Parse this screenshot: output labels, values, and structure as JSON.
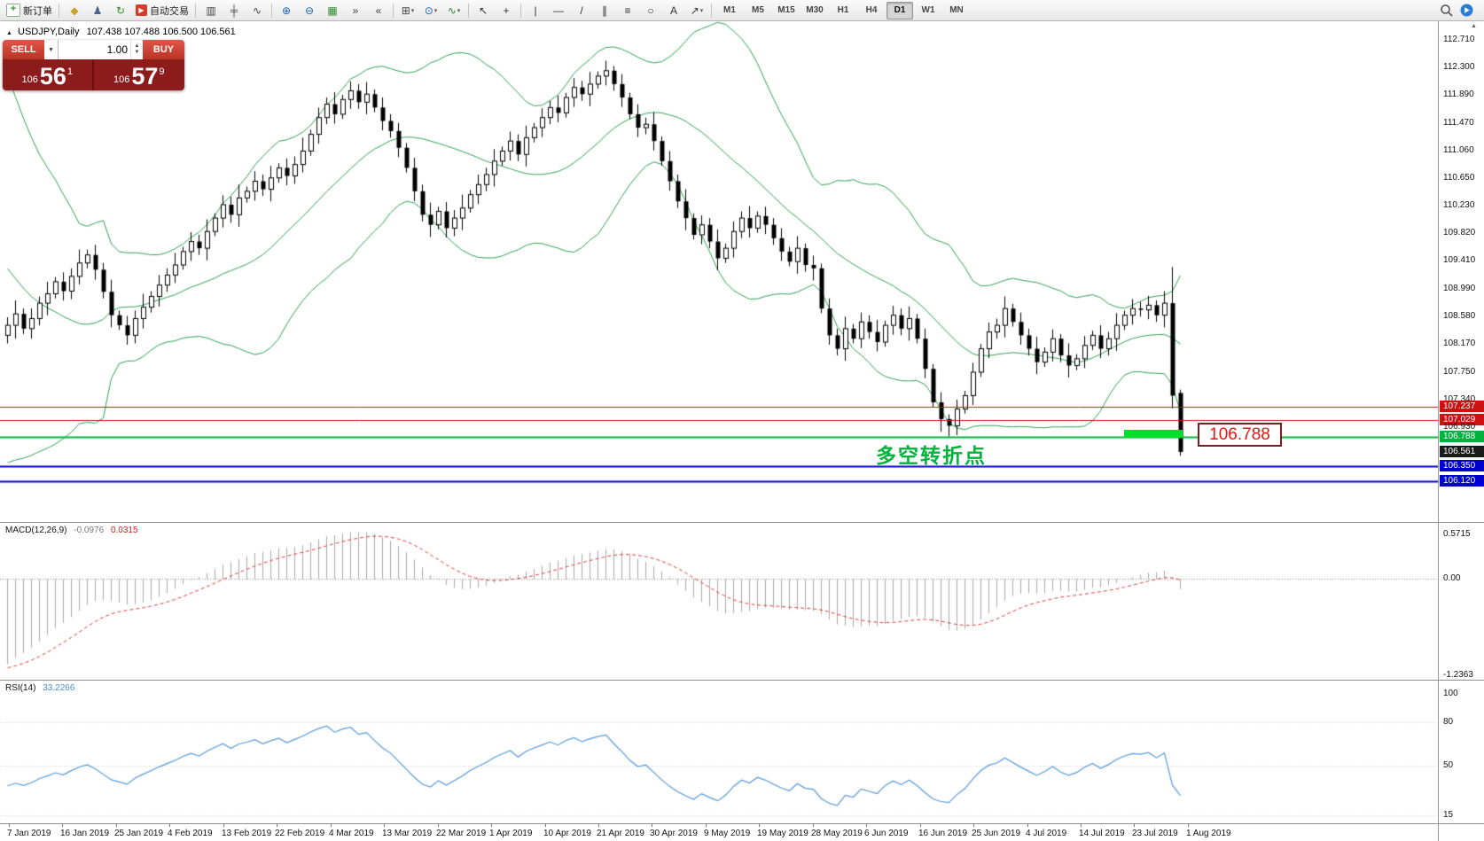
{
  "toolbar": {
    "new_order": {
      "label": "新订单",
      "icon_glyph": "+"
    },
    "autotrading": {
      "label": "自动交易",
      "icon_glyph": "▶"
    },
    "icon_groups": {
      "a": [
        {
          "name": "layers-icon",
          "glyph": "◆",
          "color": "#c9a227"
        },
        {
          "name": "profile-icon",
          "glyph": "♟",
          "color": "#46648c"
        },
        {
          "name": "refresh-icon",
          "glyph": "↻",
          "color": "#2e8b2e"
        }
      ],
      "b": [
        {
          "name": "bar-chart-icon",
          "glyph": "▥",
          "color": "#444444"
        },
        {
          "name": "candlestick-chart-icon",
          "glyph": "╪",
          "color": "#444444"
        },
        {
          "name": "line-chart-icon",
          "glyph": "∿",
          "color": "#444444"
        },
        {
          "sep": true
        },
        {
          "name": "zoom-in-icon",
          "glyph": "⊕",
          "color": "#1a62b7"
        },
        {
          "name": "zoom-out-icon",
          "glyph": "⊖",
          "color": "#1a62b7"
        },
        {
          "name": "tile-windows-icon",
          "glyph": "▦",
          "color": "#2e8b2e"
        },
        {
          "name": "auto-scroll-icon",
          "glyph": "»",
          "color": "#444444"
        },
        {
          "name": "chart-shift-icon",
          "glyph": "«",
          "color": "#444444"
        },
        {
          "sep": true
        },
        {
          "name": "new-chart-icon",
          "glyph": "⊞",
          "color": "#444444",
          "caret": true
        },
        {
          "name": "periods-icon",
          "glyph": "⊙",
          "color": "#1a62b7",
          "caret": true
        },
        {
          "name": "indicators-icon",
          "glyph": "∿",
          "color": "#2e8b2e",
          "caret": true
        },
        {
          "sep": true
        },
        {
          "name": "cursor-icon",
          "glyph": "↖",
          "color": "#333333"
        },
        {
          "name": "crosshair-icon",
          "glyph": "+",
          "color": "#333333"
        },
        {
          "sep": true
        },
        {
          "name": "vertical-line-icon",
          "glyph": "|",
          "color": "#333333"
        },
        {
          "name": "horizontal-line-icon",
          "glyph": "—",
          "color": "#333333"
        },
        {
          "name": "trendline-icon",
          "glyph": "/",
          "color": "#333333"
        },
        {
          "name": "channel-icon",
          "glyph": "∥",
          "color": "#333333"
        },
        {
          "name": "fibonacci-icon",
          "glyph": "≡",
          "color": "#333333"
        },
        {
          "name": "shapes-icon",
          "glyph": "○",
          "color": "#333333"
        },
        {
          "name": "text-icon",
          "glyph": "A",
          "color": "#333333"
        },
        {
          "name": "arrow-objects-icon",
          "glyph": "↗",
          "color": "#333333",
          "caret": true
        },
        {
          "sep": true
        }
      ]
    },
    "timeframes": [
      "M1",
      "M5",
      "M15",
      "M30",
      "H1",
      "H4",
      "D1",
      "W1",
      "MN"
    ],
    "active_timeframe": "D1"
  },
  "trade_panel": {
    "sell_label": "SELL",
    "buy_label": "BUY",
    "volume": "1.00",
    "bid": {
      "prefix": "106",
      "main": "56",
      "sup": "1"
    },
    "ask": {
      "prefix": "106",
      "main": "57",
      "sup": "9"
    }
  },
  "chart": {
    "title": {
      "symbol": "USDJPY,Daily",
      "ohlc": "107.438 107.488 106.500 106.561"
    },
    "annotation": "多空转折点",
    "price_box_label": "106.788",
    "scroll_up_glyph": "▲",
    "axis_labels": [
      "112.710",
      "112.300",
      "111.890",
      "111.470",
      "111.060",
      "110.650",
      "110.230",
      "109.820",
      "109.410",
      "108.990",
      "108.580",
      "108.170",
      "107.750",
      "107.340"
    ],
    "axis_tags": [
      {
        "text": "107.237",
        "bg": "#cc1111",
        "fg": "#ffffff"
      },
      {
        "text": "107.029",
        "bg": "#cc1111",
        "fg": "#ffffff"
      },
      {
        "text": "106.930",
        "bg": null,
        "fg": "#222222"
      },
      {
        "text": "106.788",
        "bg": "#00b33c",
        "fg": "#ffffff"
      },
      {
        "text": "106.561",
        "bg": "#1a1a1a",
        "fg": "#ffffff"
      },
      {
        "text": "106.350",
        "bg": "#0000cc",
        "fg": "#ffffff"
      },
      {
        "text": "106.120",
        "bg": "#0000cc",
        "fg": "#ffffff"
      }
    ]
  },
  "macd_panel": {
    "name": "MACD(12,26,9)",
    "value_main": "-0.0976",
    "value_signal": "0.0315",
    "axis": [
      "0.5715",
      "0.00",
      "-1.2363"
    ],
    "params": {
      "fast": 12,
      "slow": 26,
      "signal": 9
    }
  },
  "rsi_panel": {
    "name": "RSI(14)",
    "value": "33.2266",
    "axis": [
      "100",
      "80",
      "50",
      "15"
    ],
    "period": 14,
    "levels": [
      80,
      50,
      15
    ]
  },
  "time_axis": {
    "dates": [
      "7 Jan 2019",
      "16 Jan 2019",
      "25 Jan 2019",
      "4 Feb 2019",
      "13 Feb 2019",
      "22 Feb 2019",
      "4 Mar 2019",
      "13 Mar 2019",
      "22 Mar 2019",
      "1 Apr 2019",
      "10 Apr 2019",
      "21 Apr 2019",
      "30 Apr 2019",
      "9 May 2019",
      "19 May 2019",
      "28 May 2019",
      "6 Jun 2019",
      "16 Jun 2019",
      "25 Jun 2019",
      "4 Jul 2019",
      "14 Jul 2019",
      "23 Jul 2019",
      "1 Aug 2019"
    ]
  },
  "chart_data": {
    "type": "candlestick",
    "symbol": "USDJPY",
    "timeframe": "Daily",
    "bollinger": {
      "period": 20,
      "deviation": 2,
      "color": "#2da04f"
    },
    "levels": [
      {
        "price": 107.237,
        "color": "#cc1111",
        "width": 1
      },
      {
        "price": 107.029,
        "color": "#cc1111",
        "width": 1
      },
      {
        "price": 106.788,
        "color": "#00b33c",
        "width": 2
      },
      {
        "price": 106.35,
        "color": "#0000cc",
        "width": 2
      },
      {
        "price": 106.12,
        "color": "#0000cc",
        "width": 2
      }
    ],
    "indicator_warmup_closes": [
      113.4,
      113.3,
      113.15,
      112.95,
      112.8,
      112.6,
      112.75,
      112.5,
      112.3,
      112.1,
      111.85,
      111.6,
      111.3,
      111.0,
      110.7,
      110.4,
      110.3,
      110.35,
      110.28,
      110.4,
      109.7,
      108.9,
      107.8,
      106.2,
      107.4,
      108.1,
      108.5,
      108.2,
      108.1,
      108.25
    ],
    "candles": [
      [
        108.3,
        108.57,
        108.18,
        108.45
      ],
      [
        108.45,
        108.82,
        108.25,
        108.62
      ],
      [
        108.62,
        108.7,
        108.32,
        108.4
      ],
      [
        108.4,
        108.7,
        108.25,
        108.55
      ],
      [
        108.55,
        108.88,
        108.45,
        108.78
      ],
      [
        108.78,
        109.1,
        108.6,
        108.92
      ],
      [
        108.92,
        109.17,
        108.85,
        109.1
      ],
      [
        109.1,
        109.24,
        108.82,
        108.96
      ],
      [
        108.96,
        109.3,
        108.84,
        109.18
      ],
      [
        109.18,
        109.58,
        109.06,
        109.38
      ],
      [
        109.38,
        109.58,
        109.3,
        109.5
      ],
      [
        109.5,
        109.65,
        109.13,
        109.28
      ],
      [
        109.28,
        109.38,
        108.85,
        108.95
      ],
      [
        108.95,
        109.13,
        108.42,
        108.6
      ],
      [
        108.6,
        108.67,
        108.38,
        108.45
      ],
      [
        108.45,
        108.59,
        108.16,
        108.3
      ],
      [
        108.3,
        108.67,
        108.18,
        108.55
      ],
      [
        108.55,
        108.92,
        108.4,
        108.72
      ],
      [
        108.72,
        108.96,
        108.64,
        108.88
      ],
      [
        108.88,
        109.2,
        108.73,
        109.05
      ],
      [
        109.05,
        109.3,
        108.95,
        109.2
      ],
      [
        109.2,
        109.53,
        109.08,
        109.35
      ],
      [
        109.35,
        109.62,
        109.28,
        109.55
      ],
      [
        109.55,
        109.84,
        109.41,
        109.7
      ],
      [
        109.7,
        109.8,
        109.5,
        109.6
      ],
      [
        109.6,
        110.03,
        109.42,
        109.85
      ],
      [
        109.85,
        110.12,
        109.78,
        110.05
      ],
      [
        110.05,
        110.39,
        109.91,
        110.25
      ],
      [
        110.25,
        110.37,
        109.98,
        110.1
      ],
      [
        110.1,
        110.55,
        109.92,
        110.35
      ],
      [
        110.35,
        110.52,
        110.28,
        110.45
      ],
      [
        110.45,
        110.75,
        110.31,
        110.6
      ],
      [
        110.6,
        110.7,
        110.38,
        110.48
      ],
      [
        110.48,
        110.83,
        110.3,
        110.65
      ],
      [
        110.65,
        110.87,
        110.58,
        110.8
      ],
      [
        110.8,
        110.94,
        110.54,
        110.68
      ],
      [
        110.68,
        110.97,
        110.56,
        110.85
      ],
      [
        110.85,
        111.25,
        110.73,
        111.05
      ],
      [
        111.05,
        111.37,
        110.98,
        111.3
      ],
      [
        111.3,
        111.7,
        111.16,
        111.55
      ],
      [
        111.55,
        111.85,
        111.45,
        111.75
      ],
      [
        111.75,
        111.93,
        111.46,
        111.6
      ],
      [
        111.6,
        111.89,
        111.53,
        111.82
      ],
      [
        111.82,
        112.09,
        111.68,
        111.95
      ],
      [
        111.95,
        112.05,
        111.68,
        111.78
      ],
      [
        111.78,
        112.08,
        111.6,
        111.9
      ],
      [
        111.9,
        111.97,
        111.63,
        111.7
      ],
      [
        111.7,
        111.85,
        111.36,
        111.5
      ],
      [
        111.5,
        111.6,
        111.25,
        111.35
      ],
      [
        111.35,
        111.47,
        110.96,
        111.1
      ],
      [
        111.1,
        111.17,
        110.73,
        110.8
      ],
      [
        110.8,
        110.95,
        110.3,
        110.45
      ],
      [
        110.45,
        110.55,
        110.0,
        110.1
      ],
      [
        110.1,
        110.28,
        109.77,
        109.95
      ],
      [
        109.95,
        110.22,
        109.88,
        110.15
      ],
      [
        110.15,
        110.29,
        109.76,
        109.9
      ],
      [
        109.9,
        110.17,
        109.78,
        110.05
      ],
      [
        110.05,
        110.4,
        109.87,
        110.2
      ],
      [
        110.2,
        110.47,
        110.13,
        110.4
      ],
      [
        110.4,
        110.7,
        110.26,
        110.55
      ],
      [
        110.55,
        110.8,
        110.45,
        110.7
      ],
      [
        110.7,
        111.08,
        110.52,
        110.9
      ],
      [
        110.9,
        111.12,
        110.83,
        111.05
      ],
      [
        111.05,
        111.34,
        110.91,
        111.2
      ],
      [
        111.2,
        111.3,
        110.9,
        111.0
      ],
      [
        111.0,
        111.43,
        110.82,
        111.25
      ],
      [
        111.25,
        111.47,
        111.18,
        111.4
      ],
      [
        111.4,
        111.69,
        111.26,
        111.55
      ],
      [
        111.55,
        111.8,
        111.45,
        111.7
      ],
      [
        111.7,
        111.88,
        111.48,
        111.62
      ],
      [
        111.62,
        111.92,
        111.55,
        111.85
      ],
      [
        111.85,
        112.14,
        111.71,
        112.0
      ],
      [
        112.0,
        112.1,
        111.8,
        111.9
      ],
      [
        111.9,
        112.23,
        111.72,
        112.05
      ],
      [
        112.05,
        112.24,
        111.98,
        112.17
      ],
      [
        112.17,
        112.4,
        112.03,
        112.25
      ],
      [
        112.25,
        112.32,
        111.95,
        112.05
      ],
      [
        112.05,
        112.2,
        111.71,
        111.85
      ],
      [
        111.85,
        111.92,
        111.53,
        111.6
      ],
      [
        111.6,
        111.75,
        111.26,
        111.4
      ],
      [
        111.4,
        111.55,
        111.3,
        111.45
      ],
      [
        111.45,
        111.63,
        111.06,
        111.2
      ],
      [
        111.2,
        111.27,
        110.83,
        110.9
      ],
      [
        110.9,
        111.05,
        110.46,
        110.6
      ],
      [
        110.6,
        110.7,
        110.2,
        110.3
      ],
      [
        110.3,
        110.48,
        109.87,
        110.05
      ],
      [
        110.05,
        110.12,
        109.73,
        109.8
      ],
      [
        109.8,
        110.09,
        109.66,
        109.95
      ],
      [
        109.95,
        110.05,
        109.6,
        109.7
      ],
      [
        109.7,
        109.88,
        109.27,
        109.45
      ],
      [
        109.45,
        109.67,
        109.38,
        109.6
      ],
      [
        109.6,
        110.0,
        109.46,
        109.85
      ],
      [
        109.85,
        110.15,
        109.75,
        110.05
      ],
      [
        110.05,
        110.23,
        109.76,
        109.9
      ],
      [
        109.9,
        110.15,
        109.83,
        110.08
      ],
      [
        110.08,
        110.22,
        109.81,
        109.95
      ],
      [
        109.95,
        110.05,
        109.65,
        109.75
      ],
      [
        109.75,
        109.9,
        109.41,
        109.55
      ],
      [
        109.55,
        109.62,
        109.33,
        109.4
      ],
      [
        109.4,
        109.78,
        109.22,
        109.6
      ],
      [
        109.6,
        109.67,
        109.25,
        109.35
      ],
      [
        109.35,
        109.49,
        109.12,
        109.3
      ],
      [
        109.3,
        109.37,
        108.63,
        108.7
      ],
      [
        108.7,
        108.85,
        108.16,
        108.3
      ],
      [
        108.3,
        108.4,
        108.0,
        108.1
      ],
      [
        108.1,
        108.58,
        107.92,
        108.4
      ],
      [
        108.4,
        108.47,
        108.18,
        108.25
      ],
      [
        108.25,
        108.64,
        108.11,
        108.5
      ],
      [
        108.5,
        108.6,
        108.25,
        108.35
      ],
      [
        108.35,
        108.53,
        108.06,
        108.2
      ],
      [
        108.2,
        108.52,
        108.13,
        108.45
      ],
      [
        108.45,
        108.74,
        108.31,
        108.6
      ],
      [
        108.6,
        108.7,
        108.3,
        108.4
      ],
      [
        108.4,
        108.73,
        108.22,
        108.55
      ],
      [
        108.55,
        108.62,
        108.18,
        108.25
      ],
      [
        108.25,
        108.4,
        107.66,
        107.8
      ],
      [
        107.8,
        107.87,
        107.23,
        107.3
      ],
      [
        107.3,
        107.45,
        106.86,
        107.05
      ],
      [
        107.05,
        107.12,
        106.79,
        106.95
      ],
      [
        106.95,
        107.34,
        106.81,
        107.2
      ],
      [
        107.2,
        107.47,
        107.13,
        107.4
      ],
      [
        107.4,
        107.89,
        107.26,
        107.75
      ],
      [
        107.75,
        108.17,
        107.68,
        108.1
      ],
      [
        108.1,
        108.49,
        107.96,
        108.35
      ],
      [
        108.35,
        108.55,
        108.25,
        108.45
      ],
      [
        108.45,
        108.88,
        108.27,
        108.7
      ],
      [
        108.7,
        108.77,
        108.43,
        108.5
      ],
      [
        108.5,
        108.64,
        108.16,
        108.3
      ],
      [
        108.3,
        108.4,
        108.0,
        108.1
      ],
      [
        108.1,
        108.28,
        107.72,
        107.9
      ],
      [
        107.9,
        108.12,
        107.83,
        108.05
      ],
      [
        108.05,
        108.39,
        107.91,
        108.25
      ],
      [
        108.25,
        108.32,
        107.9,
        108.0
      ],
      [
        108.0,
        108.18,
        107.67,
        107.85
      ],
      [
        107.85,
        108.02,
        107.78,
        107.95
      ],
      [
        107.95,
        108.29,
        107.81,
        108.15
      ],
      [
        108.15,
        108.37,
        108.08,
        108.3
      ],
      [
        108.3,
        108.45,
        107.96,
        108.1
      ],
      [
        108.1,
        108.35,
        108.0,
        108.25
      ],
      [
        108.25,
        108.63,
        108.07,
        108.45
      ],
      [
        108.45,
        108.67,
        108.38,
        108.6
      ],
      [
        108.6,
        108.84,
        108.46,
        108.7
      ],
      [
        108.7,
        108.8,
        108.58,
        108.68
      ],
      [
        108.68,
        108.89,
        108.54,
        108.75
      ],
      [
        108.75,
        108.82,
        108.5,
        108.6
      ],
      [
        108.6,
        108.96,
        108.42,
        108.78
      ],
      [
        108.78,
        109.32,
        107.21,
        107.4
      ],
      [
        107.44,
        107.49,
        106.5,
        106.56
      ]
    ]
  }
}
